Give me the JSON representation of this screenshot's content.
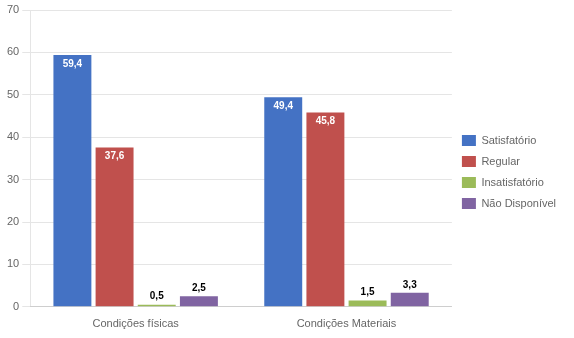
{
  "chart_data": {
    "type": "bar",
    "categories": [
      "Condições físicas",
      "Condições Materiais"
    ],
    "series": [
      {
        "name": "Satisfatório",
        "color": "#4472C4",
        "values": [
          59.4,
          49.4
        ],
        "value_labels": [
          "59,4",
          "49,4"
        ]
      },
      {
        "name": "Regular",
        "color": "#C0504D",
        "values": [
          37.6,
          45.8
        ],
        "value_labels": [
          "37,6",
          "45,8"
        ]
      },
      {
        "name": "Insatisfatório",
        "color": "#9BBB59",
        "values": [
          0.5,
          1.5
        ],
        "value_labels": [
          "0,5",
          "1,5"
        ]
      },
      {
        "name": "Não Disponível",
        "color": "#8064A2",
        "values": [
          2.5,
          3.3
        ],
        "value_labels": [
          "2,5",
          "3,3"
        ]
      }
    ],
    "ylim": [
      0,
      70
    ],
    "yticks": [
      0,
      10,
      20,
      30,
      40,
      50,
      60,
      70
    ],
    "grid": "y",
    "legend": "right",
    "data_labels": true
  }
}
